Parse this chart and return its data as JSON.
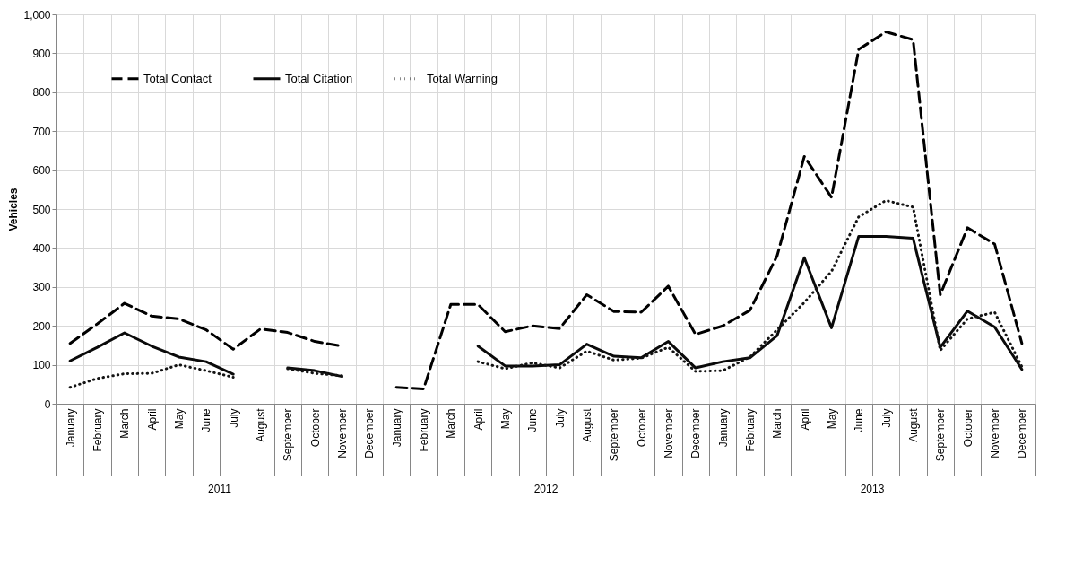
{
  "chart_data": {
    "type": "line",
    "categories": [
      "January",
      "February",
      "March",
      "April",
      "May",
      "June",
      "July",
      "August",
      "September",
      "October",
      "November",
      "December",
      "January",
      "February",
      "March",
      "April",
      "May",
      "June",
      "July",
      "August",
      "September",
      "October",
      "November",
      "December",
      "January",
      "February",
      "March",
      "April",
      "May",
      "June",
      "July",
      "August",
      "September",
      "October",
      "November",
      "December"
    ],
    "annotations": [
      "2011",
      "2012",
      "2013"
    ],
    "ylabel": "Vehicles",
    "ylim": [
      0,
      1000
    ],
    "yticks": [
      0,
      100,
      200,
      300,
      400,
      500,
      600,
      700,
      800,
      900,
      {
        "value": 1000,
        "label": "1,000"
      }
    ],
    "grid": true,
    "legend": "top left",
    "series": [
      {
        "name": "Total Contact",
        "color": "#000000",
        "line_style": "dashed",
        "values": [
          155,
          205,
          258,
          225,
          218,
          190,
          140,
          192,
          183,
          160,
          148,
          null,
          42,
          38,
          255,
          255,
          185,
          200,
          193,
          280,
          237,
          235,
          302,
          178,
          200,
          240,
          380,
          635,
          530,
          910,
          955,
          935,
          280,
          452,
          410,
          155
        ]
      },
      {
        "name": "Total Citation",
        "color": "#0a0a0a",
        "line_style": "solid",
        "values": [
          110,
          145,
          182,
          148,
          120,
          108,
          76,
          null,
          92,
          85,
          70,
          null,
          null,
          null,
          null,
          148,
          97,
          97,
          100,
          153,
          122,
          118,
          160,
          92,
          108,
          118,
          175,
          375,
          195,
          430,
          430,
          425,
          145,
          238,
          197,
          88
        ]
      },
      {
        "name": "Total Warning",
        "color": "#141414",
        "line_style": "dotted",
        "values": [
          42,
          65,
          77,
          78,
          100,
          85,
          68,
          null,
          90,
          78,
          72,
          null,
          null,
          null,
          null,
          108,
          90,
          105,
          92,
          135,
          112,
          117,
          145,
          83,
          85,
          120,
          190,
          260,
          340,
          480,
          522,
          505,
          137,
          218,
          235,
          95
        ]
      }
    ]
  }
}
